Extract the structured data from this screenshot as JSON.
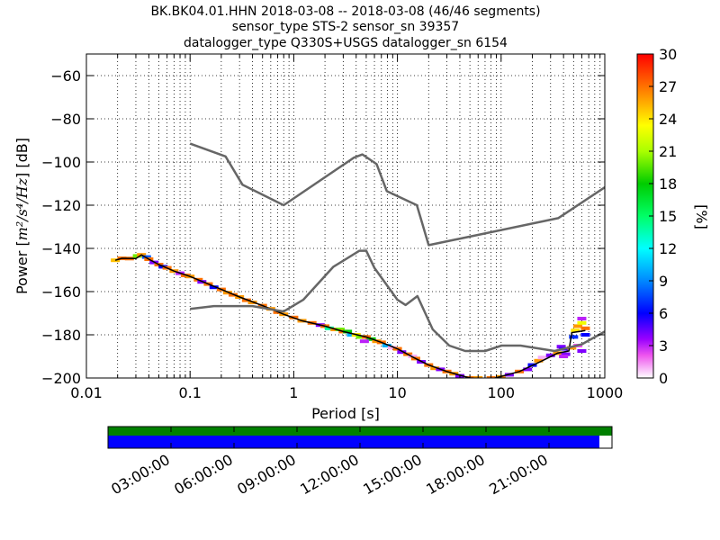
{
  "chart_data": {
    "type": "heatmap",
    "title_lines": [
      "BK.BK04.01.HHN   2018-03-08 -- 2018-03-08  (46/46 segments)",
      "sensor_type STS-2 sensor_sn 39357",
      "datalogger_type Q330S+USGS datalogger_sn 6154"
    ],
    "xlabel": "Period [s]",
    "ylabel_prefix": "Power [",
    "ylabel_math": "m²/s⁴/Hz",
    "ylabel_suffix": "] [dB]",
    "xscale": "log",
    "xlim": [
      0.01,
      1000
    ],
    "ylim": [
      -200,
      -50
    ],
    "x_ticks": [
      0.01,
      0.1,
      1,
      10,
      100,
      1000
    ],
    "x_tick_labels": [
      "0.01",
      "0.1",
      "1",
      "10",
      "100",
      "1000"
    ],
    "y_ticks": [
      -60,
      -80,
      -100,
      -120,
      -140,
      -160,
      -180,
      -200
    ],
    "y_tick_labels": [
      "−60",
      "−80",
      "−100",
      "−120",
      "−140",
      "−160",
      "−180",
      "−200"
    ],
    "grid": true,
    "noise_models": [
      {
        "name": "high",
        "points": [
          [
            0.1,
            -91.5
          ],
          [
            0.22,
            -97.4
          ],
          [
            0.32,
            -110.5
          ],
          [
            0.8,
            -120
          ],
          [
            3.8,
            -98
          ],
          [
            4.6,
            -96.5
          ],
          [
            6.3,
            -101
          ],
          [
            7.9,
            -113.5
          ],
          [
            15.4,
            -120
          ],
          [
            20,
            -138.5
          ],
          [
            354.8,
            -126
          ],
          [
            10000,
            -80
          ]
        ]
      },
      {
        "name": "low",
        "points": [
          [
            0.1,
            -168
          ],
          [
            0.17,
            -166.7
          ],
          [
            0.4,
            -166.7
          ],
          [
            0.8,
            -169.2
          ],
          [
            1.24,
            -163.7
          ],
          [
            2.4,
            -148.6
          ],
          [
            4.3,
            -141.1
          ],
          [
            5,
            -141.1
          ],
          [
            6,
            -149
          ],
          [
            10,
            -163.8
          ],
          [
            12,
            -166.2
          ],
          [
            15.6,
            -162.1
          ],
          [
            21.9,
            -177.5
          ],
          [
            31.6,
            -185
          ],
          [
            45,
            -187.5
          ],
          [
            70,
            -187.5
          ],
          [
            101,
            -185
          ],
          [
            154,
            -185
          ],
          [
            328,
            -187.5
          ],
          [
            600,
            -184.4
          ],
          [
            1000,
            -178.5
          ]
        ]
      }
    ],
    "ppsd_median": [
      [
        0.019,
        -145.5
      ],
      [
        0.022,
        -144.6
      ],
      [
        0.03,
        -144.7
      ],
      [
        0.034,
        -143
      ],
      [
        0.04,
        -145
      ],
      [
        0.05,
        -147.5
      ],
      [
        0.07,
        -150.5
      ],
      [
        0.1,
        -153
      ],
      [
        0.15,
        -156.5
      ],
      [
        0.2,
        -159
      ],
      [
        0.3,
        -162.5
      ],
      [
        0.5,
        -166.5
      ],
      [
        0.8,
        -170.5
      ],
      [
        1.2,
        -173.5
      ],
      [
        2,
        -176
      ],
      [
        3,
        -178.5
      ],
      [
        5,
        -181
      ],
      [
        7,
        -183.5
      ],
      [
        10,
        -186.5
      ],
      [
        15,
        -191
      ],
      [
        20,
        -194
      ],
      [
        30,
        -197
      ],
      [
        50,
        -200
      ],
      [
        80,
        -200.5
      ],
      [
        150,
        -197
      ],
      [
        250,
        -192
      ],
      [
        350,
        -188.5
      ],
      [
        450,
        -187.5
      ],
      [
        480,
        -179
      ],
      [
        650,
        -178
      ]
    ],
    "ppsd_cells": [
      [
        0.019,
        -145.5,
        25
      ],
      [
        0.022,
        -144.6,
        27
      ],
      [
        0.026,
        -144.7,
        27
      ],
      [
        0.031,
        -143.5,
        20
      ],
      [
        0.034,
        -143,
        26
      ],
      [
        0.038,
        -144,
        8
      ],
      [
        0.04,
        -145,
        27
      ],
      [
        0.045,
        -146.5,
        4
      ],
      [
        0.05,
        -147.5,
        27
      ],
      [
        0.055,
        -148.5,
        6
      ],
      [
        0.06,
        -149,
        27
      ],
      [
        0.07,
        -150.5,
        26
      ],
      [
        0.08,
        -151.5,
        3
      ],
      [
        0.09,
        -152.5,
        27
      ],
      [
        0.1,
        -153,
        26
      ],
      [
        0.12,
        -154.5,
        27
      ],
      [
        0.13,
        -155.5,
        4
      ],
      [
        0.15,
        -156.5,
        27
      ],
      [
        0.17,
        -158,
        6
      ],
      [
        0.2,
        -159,
        27
      ],
      [
        0.23,
        -160.5,
        26
      ],
      [
        0.26,
        -161.5,
        27
      ],
      [
        0.3,
        -162.5,
        26
      ],
      [
        0.35,
        -164,
        27
      ],
      [
        0.4,
        -165,
        26
      ],
      [
        0.5,
        -166.5,
        27
      ],
      [
        0.6,
        -168,
        26
      ],
      [
        0.7,
        -169.5,
        27
      ],
      [
        0.8,
        -170.5,
        26
      ],
      [
        1.0,
        -172,
        27
      ],
      [
        1.2,
        -173.5,
        26
      ],
      [
        1.5,
        -174.5,
        27
      ],
      [
        1.8,
        -175.5,
        4
      ],
      [
        2.0,
        -176,
        27
      ],
      [
        2.2,
        -177,
        14
      ],
      [
        2.5,
        -177.5,
        26
      ],
      [
        2.8,
        -177.5,
        20
      ],
      [
        3.0,
        -178.5,
        27
      ],
      [
        3.3,
        -178.5,
        18
      ],
      [
        3.6,
        -180,
        10
      ],
      [
        4.0,
        -180,
        24
      ],
      [
        4.4,
        -181,
        20
      ],
      [
        5.0,
        -181,
        27
      ],
      [
        5.6,
        -182,
        18
      ],
      [
        4.8,
        -183,
        3
      ],
      [
        6.3,
        -183,
        26
      ],
      [
        7.0,
        -183.5,
        27
      ],
      [
        7.9,
        -185,
        10
      ],
      [
        8.9,
        -186,
        1
      ],
      [
        10,
        -186.5,
        27
      ],
      [
        11,
        -188,
        4
      ],
      [
        12.6,
        -189,
        27
      ],
      [
        14,
        -190,
        1
      ],
      [
        15,
        -191,
        27
      ],
      [
        17,
        -192.5,
        4
      ],
      [
        20,
        -194,
        27
      ],
      [
        23,
        -195.5,
        26
      ],
      [
        26,
        -196,
        4
      ],
      [
        30,
        -197,
        27
      ],
      [
        35,
        -198,
        26
      ],
      [
        40,
        -199,
        4
      ],
      [
        50,
        -200,
        27
      ],
      [
        60,
        -200,
        26
      ],
      [
        80,
        -200,
        27
      ],
      [
        100,
        -199.5,
        26
      ],
      [
        120,
        -198.5,
        4
      ],
      [
        150,
        -197,
        27
      ],
      [
        180,
        -196,
        4
      ],
      [
        200,
        -194,
        6
      ],
      [
        230,
        -192,
        26
      ],
      [
        250,
        -190.5,
        1
      ],
      [
        300,
        -189.5,
        4
      ],
      [
        350,
        -188.5,
        26
      ],
      [
        380,
        -185.5,
        4
      ],
      [
        400,
        -186.5,
        5
      ],
      [
        420,
        -189,
        4
      ],
      [
        480,
        -186,
        26
      ],
      [
        500,
        -181,
        7
      ],
      [
        520,
        -178,
        24
      ],
      [
        550,
        -176,
        26
      ],
      [
        600,
        -174.5,
        23
      ],
      [
        600,
        -172.5,
        3
      ],
      [
        650,
        -177,
        27
      ],
      [
        650,
        -180,
        6
      ],
      [
        550,
        -185,
        2
      ],
      [
        600,
        -187.5,
        4
      ],
      [
        400,
        -190,
        3
      ]
    ],
    "colorbar": {
      "label": "[%]",
      "min": 0,
      "max": 30,
      "ticks": [
        0,
        3,
        6,
        9,
        12,
        15,
        18,
        21,
        24,
        27,
        30
      ],
      "tick_labels": [
        "0",
        "3",
        "6",
        "9",
        "12",
        "15",
        "18",
        "21",
        "24",
        "27",
        "30"
      ]
    },
    "coverage": {
      "start_hour": 0,
      "end_hour": 24,
      "data_coverage_fraction": 0.975,
      "ticks": [
        "03:00:00",
        "06:00:00",
        "09:00:00",
        "12:00:00",
        "15:00:00",
        "18:00:00",
        "21:00:00"
      ],
      "top_color": "#008000",
      "bottom_color": "#0000ff"
    },
    "colors": {
      "noise_model": "#666666",
      "median": "#000000",
      "grid": "#000000"
    }
  }
}
